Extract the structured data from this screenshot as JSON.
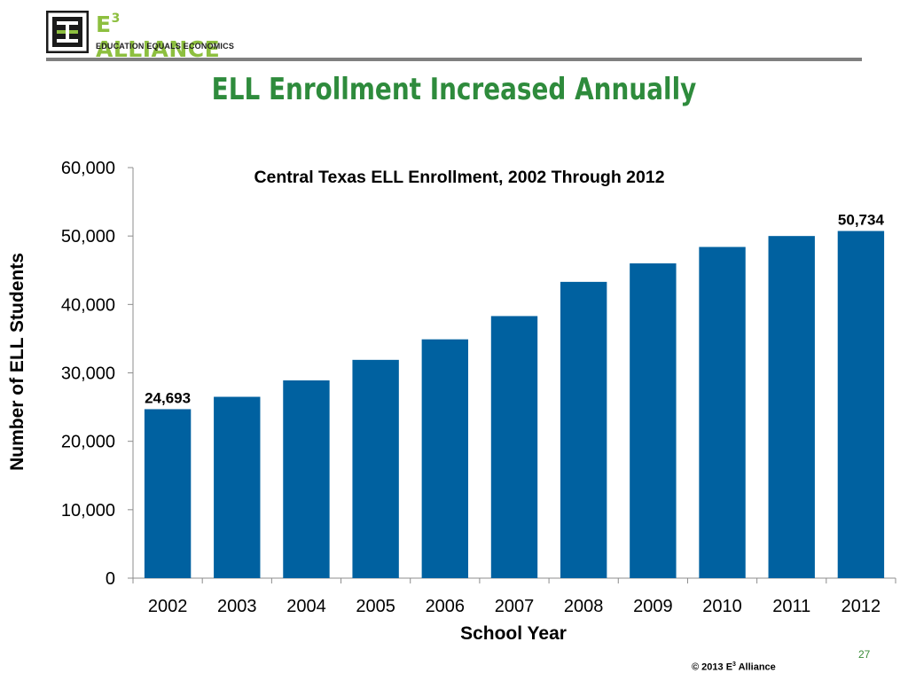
{
  "header": {
    "logo_main": "E",
    "logo_sup": "3",
    "logo_rest": " ALLIANCE",
    "logo_tagline": "EDUCATION EQUALS ECONOMICS"
  },
  "slide_title": "ELL Enrollment Increased Annually",
  "chart_data": {
    "type": "bar",
    "title": "Central Texas ELL Enrollment, 2002 Through 2012",
    "xlabel": "School Year",
    "ylabel": "Number of ELL Students",
    "categories": [
      "2002",
      "2003",
      "2004",
      "2005",
      "2006",
      "2007",
      "2008",
      "2009",
      "2010",
      "2011",
      "2012"
    ],
    "values": [
      24693,
      26500,
      28900,
      31900,
      34900,
      38300,
      43300,
      46000,
      48400,
      50000,
      50734
    ],
    "data_labels": {
      "0": "24,693",
      "10": "50,734"
    },
    "ylim": [
      0,
      60000
    ],
    "yticks": [
      0,
      10000,
      20000,
      30000,
      40000,
      50000,
      60000
    ],
    "ytick_labels": [
      "0",
      "10,000",
      "20,000",
      "30,000",
      "40,000",
      "50,000",
      "60,000"
    ],
    "grid": false,
    "legend": "none",
    "bar_color": "#0061a0"
  },
  "footer": {
    "page_number": "27",
    "copyright_prefix": "© 2013 E",
    "copyright_sup": "3",
    "copyright_suffix": " Alliance"
  }
}
